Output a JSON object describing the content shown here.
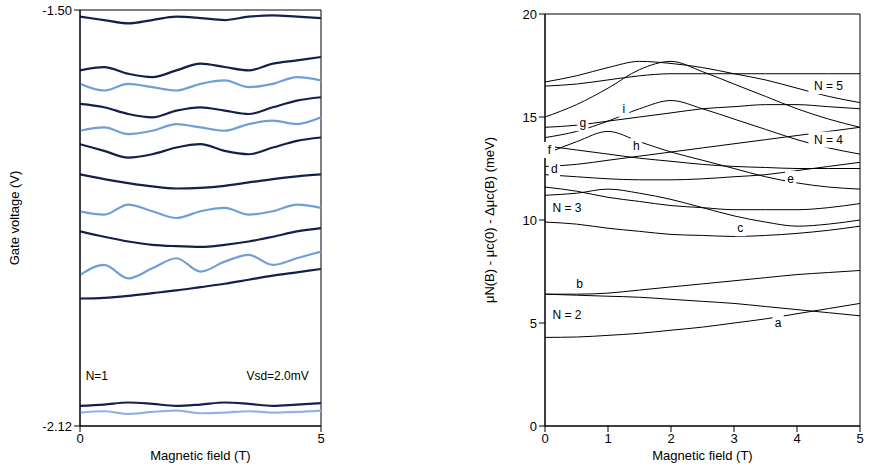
{
  "chart_data": [
    {
      "type": "line",
      "grid": false,
      "x_label": "Magnetic field (T)",
      "y_label": "Gate voltage (V)",
      "xlim": [
        0,
        5
      ],
      "xticks": [
        0,
        5
      ],
      "ylim": [
        -2.12,
        -1.5
      ],
      "yticks": [
        {
          "value": -2.12,
          "label": "-2.12"
        },
        {
          "value": -1.5,
          "label": "-1.50"
        }
      ],
      "x": [
        0,
        0.5,
        1,
        1.5,
        2,
        2.5,
        3,
        3.5,
        4,
        4.5,
        5
      ],
      "series": [
        {
          "color": "#8fb4e3",
          "values": [
            -2.1,
            -2.098,
            -2.102,
            -2.099,
            -2.097,
            -2.101,
            -2.1,
            -2.098,
            -2.1,
            -2.099,
            -2.097
          ]
        },
        {
          "color": "#14204a",
          "values": [
            -2.09,
            -2.088,
            -2.085,
            -2.087,
            -2.09,
            -2.088,
            -2.085,
            -2.087,
            -2.09,
            -2.088,
            -2.086
          ]
        },
        {
          "color": "#14204a",
          "values": [
            -1.93,
            -1.929,
            -1.926,
            -1.922,
            -1.918,
            -1.913,
            -1.908,
            -1.902,
            -1.896,
            -1.891,
            -1.886
          ]
        },
        {
          "color": "#6f9fd8",
          "values": [
            -1.895,
            -1.88,
            -1.9,
            -1.885,
            -1.87,
            -1.89,
            -1.875,
            -1.865,
            -1.88,
            -1.87,
            -1.86
          ]
        },
        {
          "color": "#14204a",
          "values": [
            -1.83,
            -1.838,
            -1.845,
            -1.85,
            -1.852,
            -1.853,
            -1.85,
            -1.845,
            -1.838,
            -1.83,
            -1.825
          ]
        },
        {
          "color": "#6f9fd8",
          "values": [
            -1.8,
            -1.805,
            -1.79,
            -1.8,
            -1.81,
            -1.8,
            -1.795,
            -1.805,
            -1.8,
            -1.79,
            -1.795
          ]
        },
        {
          "color": "#14204a",
          "values": [
            -1.745,
            -1.752,
            -1.758,
            -1.763,
            -1.766,
            -1.765,
            -1.762,
            -1.757,
            -1.752,
            -1.748,
            -1.745
          ]
        },
        {
          "color": "#14204a",
          "values": [
            -1.7,
            -1.71,
            -1.72,
            -1.715,
            -1.705,
            -1.7,
            -1.71,
            -1.715,
            -1.705,
            -1.695,
            -1.69
          ]
        },
        {
          "color": "#6f9fd8",
          "values": [
            -1.68,
            -1.675,
            -1.685,
            -1.68,
            -1.67,
            -1.675,
            -1.68,
            -1.67,
            -1.665,
            -1.67,
            -1.66
          ]
        },
        {
          "color": "#14204a",
          "values": [
            -1.64,
            -1.645,
            -1.655,
            -1.66,
            -1.65,
            -1.645,
            -1.65,
            -1.655,
            -1.645,
            -1.635,
            -1.63
          ]
        },
        {
          "color": "#6f9fd8",
          "values": [
            -1.61,
            -1.62,
            -1.61,
            -1.615,
            -1.62,
            -1.61,
            -1.605,
            -1.615,
            -1.61,
            -1.6,
            -1.605
          ]
        },
        {
          "color": "#14204a",
          "values": [
            -1.59,
            -1.585,
            -1.595,
            -1.6,
            -1.59,
            -1.58,
            -1.585,
            -1.59,
            -1.58,
            -1.575,
            -1.57
          ]
        },
        {
          "color": "#14204a",
          "values": [
            -1.51,
            -1.515,
            -1.52,
            -1.515,
            -1.51,
            -1.512,
            -1.515,
            -1.51,
            -1.508,
            -1.51,
            -1.512
          ]
        }
      ],
      "annotations": [
        {
          "text": "N=1",
          "x": 0.35,
          "y": -2.045
        },
        {
          "text": "Vsd=2.0mV",
          "x": 4.1,
          "y": -2.045
        }
      ]
    },
    {
      "type": "line",
      "grid": false,
      "x_label": "Magnetic field (T)",
      "y_label": "μN(B) - μc(0) - Δμc(B) (meV)",
      "xlim": [
        0,
        5
      ],
      "xticks": [
        0,
        1,
        2,
        3,
        4,
        5
      ],
      "ylim": [
        0,
        20
      ],
      "yticks": [
        0,
        5,
        10,
        15,
        20
      ],
      "x": [
        0,
        0.5,
        1,
        1.5,
        2,
        2.5,
        3,
        3.5,
        4,
        4.5,
        5
      ],
      "series": [
        {
          "color": "#000000",
          "values": [
            4.3,
            4.32,
            4.4,
            4.5,
            4.65,
            4.8,
            5.0,
            5.2,
            5.45,
            5.7,
            5.95
          ]
        },
        {
          "color": "#000000",
          "values": [
            6.4,
            6.4,
            6.45,
            6.6,
            6.75,
            6.9,
            7.05,
            7.2,
            7.35,
            7.45,
            7.55
          ]
        },
        {
          "color": "#000000",
          "values": [
            6.4,
            6.35,
            6.3,
            6.25,
            6.15,
            6.05,
            5.95,
            5.8,
            5.65,
            5.5,
            5.35
          ]
        },
        {
          "color": "#000000",
          "values": [
            9.9,
            9.8,
            9.6,
            9.45,
            9.3,
            9.25,
            9.2,
            9.25,
            9.35,
            9.5,
            9.7
          ]
        },
        {
          "color": "#000000",
          "values": [
            11.2,
            11.3,
            11.5,
            11.3,
            11.0,
            10.6,
            10.2,
            9.9,
            9.7,
            9.8,
            10.0
          ]
        },
        {
          "color": "#000000",
          "values": [
            11.6,
            11.4,
            11.1,
            10.9,
            10.7,
            10.6,
            10.5,
            10.5,
            10.5,
            10.6,
            10.8
          ]
        },
        {
          "color": "#000000",
          "values": [
            12.2,
            12.1,
            12.0,
            11.95,
            11.95,
            12.0,
            12.1,
            12.2,
            12.4,
            12.6,
            12.8
          ]
        },
        {
          "color": "#000000",
          "values": [
            12.6,
            12.7,
            12.9,
            13.1,
            13.3,
            13.5,
            13.7,
            13.9,
            14.1,
            14.3,
            14.5
          ]
        },
        {
          "color": "#000000",
          "values": [
            13.2,
            13.8,
            14.3,
            13.8,
            13.3,
            12.9,
            12.5,
            12.1,
            11.8,
            11.6,
            11.5
          ]
        },
        {
          "color": "#000000",
          "values": [
            13.6,
            13.4,
            13.2,
            13.0,
            12.85,
            12.7,
            12.6,
            12.55,
            12.5,
            12.5,
            12.5
          ]
        },
        {
          "color": "#000000",
          "values": [
            14.0,
            14.3,
            14.8,
            15.4,
            15.8,
            15.4,
            14.9,
            14.4,
            13.9,
            13.5,
            13.2
          ]
        },
        {
          "color": "#000000",
          "values": [
            14.5,
            14.6,
            14.8,
            15.0,
            15.2,
            15.4,
            15.5,
            15.6,
            15.6,
            15.5,
            15.4
          ]
        },
        {
          "color": "#000000",
          "values": [
            15.0,
            15.6,
            16.4,
            17.3,
            17.7,
            17.2,
            16.6,
            16.0,
            15.4,
            14.9,
            14.5
          ]
        },
        {
          "color": "#000000",
          "values": [
            16.5,
            16.6,
            16.8,
            17.0,
            17.1,
            17.1,
            17.1,
            17.1,
            17.1,
            17.1,
            17.1
          ]
        },
        {
          "color": "#000000",
          "values": [
            16.7,
            17.0,
            17.4,
            17.7,
            17.6,
            17.4,
            17.1,
            16.8,
            16.4,
            16.0,
            15.7
          ]
        }
      ],
      "annotations": [
        {
          "text": "N = 2",
          "x": 0.35,
          "y": 5.4
        },
        {
          "text": "N = 3",
          "x": 0.35,
          "y": 10.6
        },
        {
          "text": "N = 4",
          "x": 4.5,
          "y": 13.9
        },
        {
          "text": "N = 5",
          "x": 4.5,
          "y": 16.5
        },
        {
          "text": "a",
          "x": 3.7,
          "y": 5.0
        },
        {
          "text": "b",
          "x": 0.55,
          "y": 6.9
        },
        {
          "text": "c",
          "x": 3.1,
          "y": 9.6
        },
        {
          "text": "d",
          "x": 0.15,
          "y": 12.5
        },
        {
          "text": "e",
          "x": 3.9,
          "y": 12.0
        },
        {
          "text": "f",
          "x": 0.07,
          "y": 13.4
        },
        {
          "text": "g",
          "x": 0.6,
          "y": 14.7
        },
        {
          "text": "h",
          "x": 1.45,
          "y": 13.6
        },
        {
          "text": "i",
          "x": 1.25,
          "y": 15.4
        }
      ]
    }
  ]
}
